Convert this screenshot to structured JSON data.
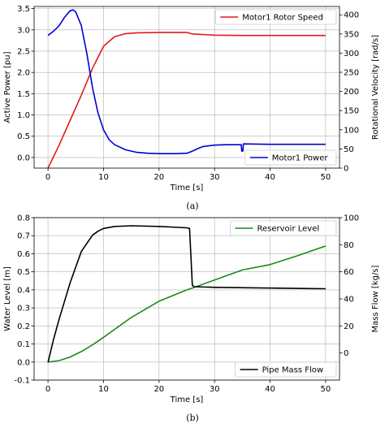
{
  "chart_data": [
    {
      "type": "line",
      "caption": "(a)",
      "xlabel": "Time [s]",
      "ylabel_left": "Active Power [pu]",
      "ylabel_right": "Rotational Velocity [rad/s]",
      "xlim": [
        -2.5,
        52.5
      ],
      "ylim_left": [
        -0.25,
        3.55
      ],
      "ylim_right": [
        0,
        421.7
      ],
      "xticks": [
        0,
        10,
        20,
        30,
        40,
        50
      ],
      "yticks_left": [
        0.0,
        0.5,
        1.0,
        1.5,
        2.0,
        2.5,
        3.0,
        3.5
      ],
      "yticks_right": [
        0,
        50,
        100,
        150,
        200,
        250,
        300,
        350,
        400
      ],
      "grid": true,
      "series": [
        {
          "name": "Motor1 Rotor Speed",
          "axis": "right",
          "color": "#e31a1c",
          "legend": "top-right",
          "points": [
            [
              0,
              0
            ],
            [
              2,
              60
            ],
            [
              4,
              125
            ],
            [
              6,
              190
            ],
            [
              8,
              260
            ],
            [
              10,
              318
            ],
            [
              12,
              343
            ],
            [
              14,
              351
            ],
            [
              16,
              353
            ],
            [
              20,
              354
            ],
            [
              25,
              354
            ],
            [
              26,
              350
            ],
            [
              30,
              347
            ],
            [
              35,
              346
            ],
            [
              40,
              346
            ],
            [
              45,
              346
            ],
            [
              50,
              346
            ]
          ]
        },
        {
          "name": "Motor1 Power",
          "axis": "left",
          "color": "#0000d0",
          "legend": "bottom-right",
          "points": [
            [
              0,
              2.87
            ],
            [
              1,
              2.97
            ],
            [
              2,
              3.1
            ],
            [
              3,
              3.3
            ],
            [
              4,
              3.45
            ],
            [
              4.5,
              3.47
            ],
            [
              5,
              3.42
            ],
            [
              6,
              3.1
            ],
            [
              7,
              2.45
            ],
            [
              8,
              1.65
            ],
            [
              9,
              1.05
            ],
            [
              10,
              0.65
            ],
            [
              11,
              0.42
            ],
            [
              12,
              0.3
            ],
            [
              14,
              0.18
            ],
            [
              16,
              0.12
            ],
            [
              18,
              0.1
            ],
            [
              20,
              0.09
            ],
            [
              23,
              0.09
            ],
            [
              25,
              0.1
            ],
            [
              26,
              0.15
            ],
            [
              27,
              0.21
            ],
            [
              28,
              0.26
            ],
            [
              30,
              0.29
            ],
            [
              32,
              0.3
            ],
            [
              34.8,
              0.3
            ],
            [
              34.9,
              0.15
            ],
            [
              35.1,
              0.15
            ],
            [
              35.2,
              0.32
            ],
            [
              40,
              0.31
            ],
            [
              45,
              0.31
            ],
            [
              50,
              0.31
            ]
          ]
        }
      ]
    },
    {
      "type": "line",
      "caption": "(b)",
      "xlabel": "Time [s]",
      "ylabel_left": "Water Level [m]",
      "ylabel_right": "Mass Flow [kg/s]",
      "xlim": [
        -2.5,
        52.5
      ],
      "ylim_left": [
        -0.1,
        0.8
      ],
      "ylim_right": [
        -20,
        100
      ],
      "xticks": [
        0,
        10,
        20,
        30,
        40,
        50
      ],
      "yticks_left": [
        -0.1,
        0.0,
        0.1,
        0.2,
        0.3,
        0.4,
        0.5,
        0.6,
        0.7,
        0.8
      ],
      "yticks_right": [
        0,
        20,
        40,
        60,
        80,
        100
      ],
      "grid": true,
      "series": [
        {
          "name": "Reservoir Level",
          "axis": "left",
          "color": "#1a8a1a",
          "legend": "top-right",
          "points": [
            [
              0,
              0
            ],
            [
              2,
              0.008
            ],
            [
              4,
              0.028
            ],
            [
              6,
              0.058
            ],
            [
              8,
              0.095
            ],
            [
              10,
              0.137
            ],
            [
              15,
              0.247
            ],
            [
              20,
              0.337
            ],
            [
              25,
              0.4
            ],
            [
              26,
              0.41
            ],
            [
              30,
              0.455
            ],
            [
              35,
              0.51
            ],
            [
              40,
              0.54
            ],
            [
              45,
              0.59
            ],
            [
              50,
              0.643
            ]
          ]
        },
        {
          "name": "Pipe Mass Flow",
          "axis": "right",
          "color": "#000000",
          "legend": "bottom-right",
          "points": [
            [
              0,
              -7
            ],
            [
              1,
              10
            ],
            [
              2,
              25
            ],
            [
              4,
              52
            ],
            [
              6,
              75
            ],
            [
              8,
              87
            ],
            [
              9,
              90
            ],
            [
              10,
              92
            ],
            [
              12,
              93.5
            ],
            [
              15,
              94
            ],
            [
              20,
              93.5
            ],
            [
              25,
              92.5
            ],
            [
              25.5,
              92
            ],
            [
              26,
              50
            ],
            [
              26.3,
              49
            ],
            [
              30,
              48.5
            ],
            [
              40,
              48
            ],
            [
              50,
              47.5
            ]
          ]
        }
      ]
    }
  ]
}
